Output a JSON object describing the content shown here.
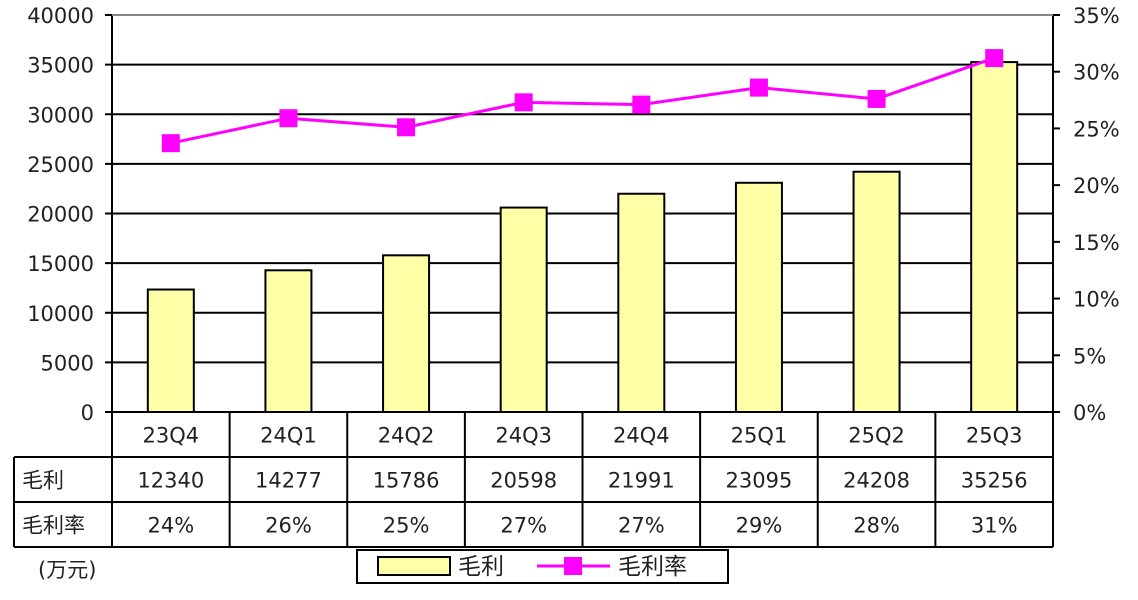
{
  "chart_data": {
    "type": "bar",
    "categories": [
      "23Q4",
      "24Q1",
      "24Q2",
      "24Q3",
      "24Q4",
      "25Q1",
      "25Q2",
      "25Q3"
    ],
    "series": [
      {
        "name": "毛利",
        "type": "bar",
        "axis": "left",
        "values": [
          12340,
          14277,
          15786,
          20598,
          21991,
          23095,
          24208,
          35256
        ],
        "color": "#FFFFA8"
      },
      {
        "name": "毛利率",
        "type": "line",
        "axis": "right",
        "values": [
          23.7,
          25.9,
          25.1,
          27.3,
          27.1,
          28.6,
          27.6,
          31.2
        ],
        "color": "#FF00FF"
      }
    ],
    "ylim_left": [
      0,
      40000
    ],
    "ylim_right": [
      0,
      35
    ],
    "yticks_left": [
      "0",
      "5000",
      "10000",
      "15000",
      "20000",
      "25000",
      "30000",
      "35000",
      "40000"
    ],
    "yticks_right": [
      "0%",
      "5%",
      "10%",
      "15%",
      "20%",
      "25%",
      "30%",
      "35%"
    ],
    "grid": true,
    "data_table": {
      "rows": [
        {
          "label": "毛利",
          "values": [
            "12340",
            "14277",
            "15786",
            "20598",
            "21991",
            "23095",
            "24208",
            "35256"
          ]
        },
        {
          "label": "毛利率",
          "values": [
            "24%",
            "26%",
            "25%",
            "27%",
            "27%",
            "29%",
            "28%",
            "31%"
          ]
        }
      ]
    },
    "unit_label": "(万元)",
    "legend": {
      "position": "bottom",
      "items": [
        "毛利",
        "毛利率"
      ]
    }
  }
}
